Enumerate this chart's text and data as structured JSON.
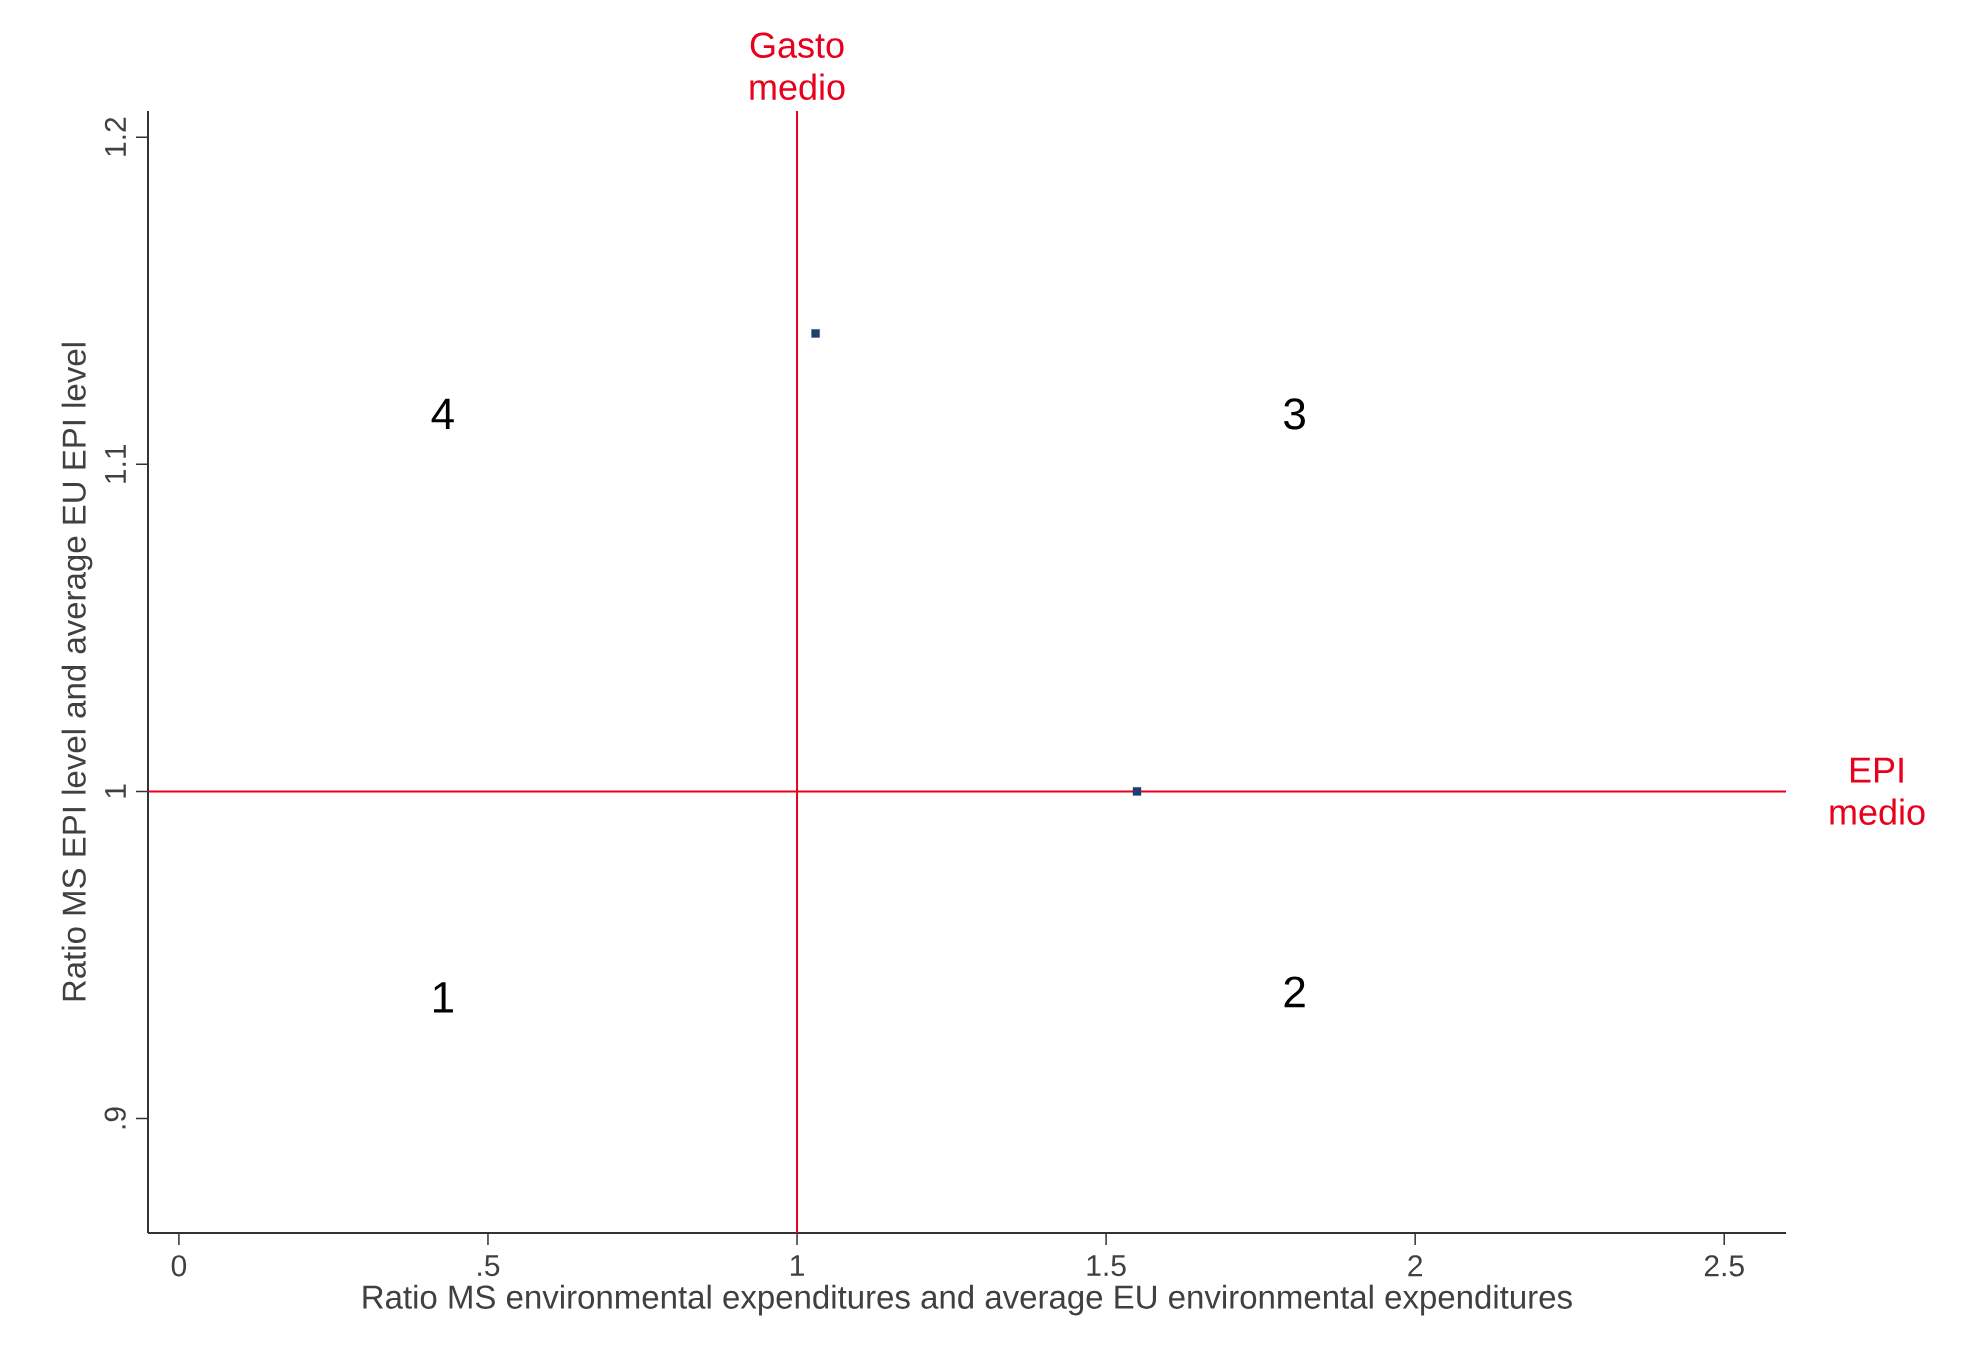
{
  "chart_data": {
    "type": "scatter",
    "xlabel": "Ratio MS environmental expenditures and average EU environmental expenditures",
    "ylabel": "Ratio MS EPI level and average EU EPI level",
    "x": [
      1.55,
      1.03
    ],
    "values": [
      1.0,
      1.14
    ],
    "color": "#1f3f6f",
    "marker": "square",
    "xlim": [
      -0.05,
      2.6
    ],
    "ylim": [
      0.865,
      1.208
    ],
    "xticks": [
      0,
      {
        "value": 0.5,
        "label": ".5"
      },
      1,
      1.5,
      2,
      2.5
    ],
    "yticks": [
      {
        "value": 0.9,
        "label": ".9"
      },
      1,
      1.1,
      1.2
    ],
    "ref_lines": [
      {
        "axis": "x",
        "value": 1,
        "label": "Gasto medio",
        "color": "#e8001c"
      },
      {
        "axis": "y",
        "value": 1,
        "label": "EPI medio",
        "color": "#e8001c"
      }
    ],
    "annotations": [
      "1",
      "2",
      "3",
      "4"
    ]
  }
}
